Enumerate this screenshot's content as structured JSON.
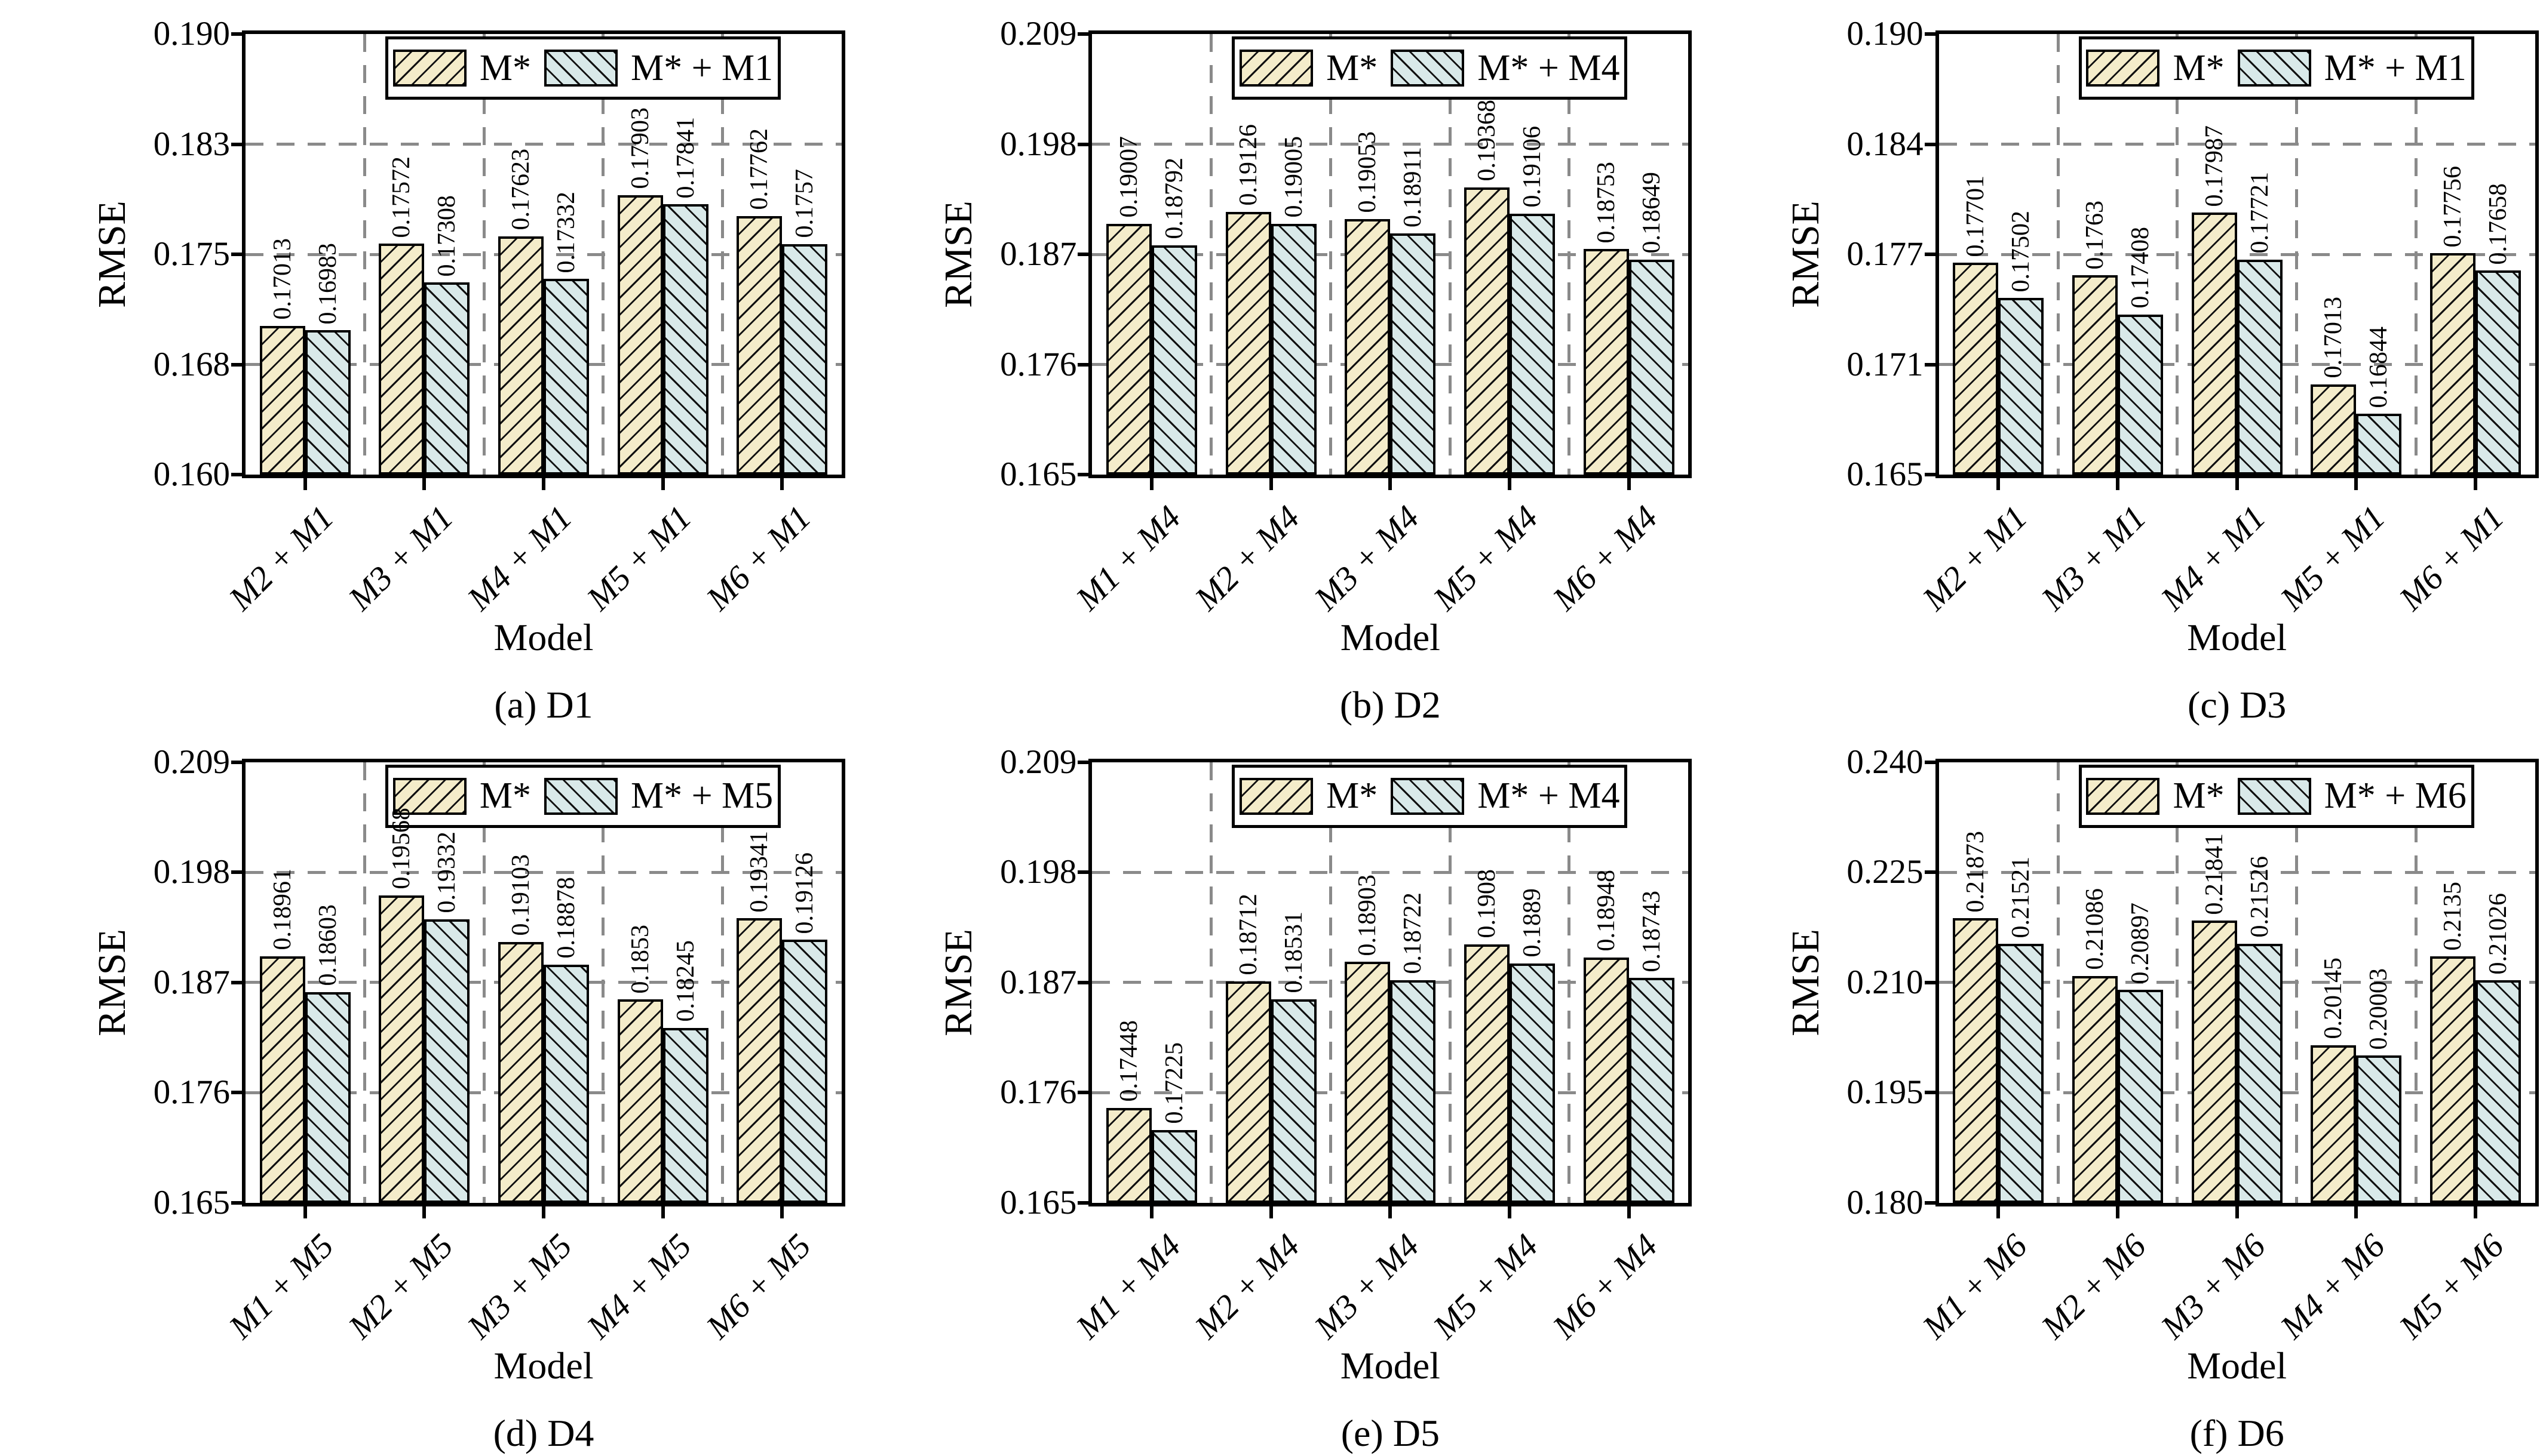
{
  "figure": {
    "ylabel": "RMSE",
    "xlabel": "Model",
    "colors": {
      "bar_fill_primary": "#f4ecca",
      "bar_fill_secondary": "#d9e9e9",
      "hatch": "#111111",
      "grid": "#8a8a8a",
      "axis": "#000000",
      "background": "#ffffff"
    }
  },
  "chart_data": [
    {
      "type": "bar",
      "caption": "(a) D1",
      "xlabel": "Model",
      "ylabel": "RMSE",
      "ylim": [
        0.16,
        0.19
      ],
      "ytick_labels": [
        "0.190",
        "0.183",
        "0.175",
        "0.168",
        "0.160"
      ],
      "categories": [
        "M2 + M1",
        "M3 + M1",
        "M4 + M1",
        "M5 + M1",
        "M6 + M1"
      ],
      "legend": [
        "M*",
        "M* + M1"
      ],
      "legend_position": "top-center",
      "grid": true,
      "series": [
        {
          "name": "M*",
          "values": [
            0.17013,
            0.17572,
            0.17623,
            0.17903,
            0.17762
          ]
        },
        {
          "name": "M* + M1",
          "values": [
            0.16983,
            0.17308,
            0.17332,
            0.17841,
            0.1757
          ]
        }
      ]
    },
    {
      "type": "bar",
      "caption": "(b) D2",
      "xlabel": "Model",
      "ylabel": "RMSE",
      "ylim": [
        0.165,
        0.209
      ],
      "ytick_labels": [
        "0.209",
        "0.198",
        "0.187",
        "0.176",
        "0.165"
      ],
      "categories": [
        "M1 + M4",
        "M2 + M4",
        "M3 + M4",
        "M5 + M4",
        "M6 + M4"
      ],
      "legend": [
        "M*",
        "M* + M4"
      ],
      "legend_position": "top-center",
      "grid": true,
      "series": [
        {
          "name": "M*",
          "values": [
            0.19007,
            0.19126,
            0.19053,
            0.19368,
            0.18753
          ]
        },
        {
          "name": "M* + M4",
          "values": [
            0.18792,
            0.19005,
            0.18911,
            0.19106,
            0.18649
          ]
        }
      ]
    },
    {
      "type": "bar",
      "caption": "(c) D3",
      "xlabel": "Model",
      "ylabel": "RMSE",
      "ylim": [
        0.165,
        0.19
      ],
      "ytick_labels": [
        "0.190",
        "0.184",
        "0.177",
        "0.171",
        "0.165"
      ],
      "categories": [
        "M2 + M1",
        "M3 + M1",
        "M4 + M1",
        "M5 + M1",
        "M6 + M1"
      ],
      "legend": [
        "M*",
        "M* + M1"
      ],
      "legend_position": "top-center",
      "grid": true,
      "series": [
        {
          "name": "M*",
          "values": [
            0.17701,
            0.1763,
            0.17987,
            0.17013,
            0.17756
          ]
        },
        {
          "name": "M* + M1",
          "values": [
            0.17502,
            0.17408,
            0.17721,
            0.16844,
            0.17658
          ]
        }
      ]
    },
    {
      "type": "bar",
      "caption": "(d) D4",
      "xlabel": "Model",
      "ylabel": "RMSE",
      "ylim": [
        0.165,
        0.209
      ],
      "ytick_labels": [
        "0.209",
        "0.198",
        "0.187",
        "0.176",
        "0.165"
      ],
      "categories": [
        "M1 + M5",
        "M2 + M5",
        "M3 + M5",
        "M4 + M5",
        "M6 + M5"
      ],
      "legend": [
        "M*",
        "M* + M5"
      ],
      "legend_position": "top-center",
      "grid": true,
      "series": [
        {
          "name": "M*",
          "values": [
            0.18961,
            0.19568,
            0.19103,
            0.1853,
            0.19341
          ]
        },
        {
          "name": "M* + M5",
          "values": [
            0.18603,
            0.19332,
            0.18878,
            0.18245,
            0.19126
          ]
        }
      ]
    },
    {
      "type": "bar",
      "caption": "(e) D5",
      "xlabel": "Model",
      "ylabel": "RMSE",
      "ylim": [
        0.165,
        0.209
      ],
      "ytick_labels": [
        "0.209",
        "0.198",
        "0.187",
        "0.176",
        "0.165"
      ],
      "categories": [
        "M1 + M4",
        "M2 + M4",
        "M3 + M4",
        "M5 + M4",
        "M6 + M4"
      ],
      "legend": [
        "M*",
        "M* + M4"
      ],
      "legend_position": "top-center",
      "grid": true,
      "series": [
        {
          "name": "M*",
          "values": [
            0.17448,
            0.18712,
            0.18903,
            0.1908,
            0.18948
          ]
        },
        {
          "name": "M* + M4",
          "values": [
            0.17225,
            0.18531,
            0.18722,
            0.1889,
            0.18743
          ]
        }
      ]
    },
    {
      "type": "bar",
      "caption": "(f) D6",
      "xlabel": "Model",
      "ylabel": "RMSE",
      "ylim": [
        0.18,
        0.24
      ],
      "ytick_labels": [
        "0.240",
        "0.225",
        "0.210",
        "0.195",
        "0.180"
      ],
      "categories": [
        "M1 + M6",
        "M2 + M6",
        "M3 + M6",
        "M4 + M6",
        "M5 + M6"
      ],
      "legend": [
        "M*",
        "M* + M6"
      ],
      "legend_position": "top-center",
      "grid": true,
      "series": [
        {
          "name": "M*",
          "values": [
            0.21873,
            0.21086,
            0.21841,
            0.20145,
            0.2135
          ]
        },
        {
          "name": "M* + M6",
          "values": [
            0.21521,
            0.20897,
            0.21526,
            0.20003,
            0.21026
          ]
        }
      ]
    }
  ]
}
